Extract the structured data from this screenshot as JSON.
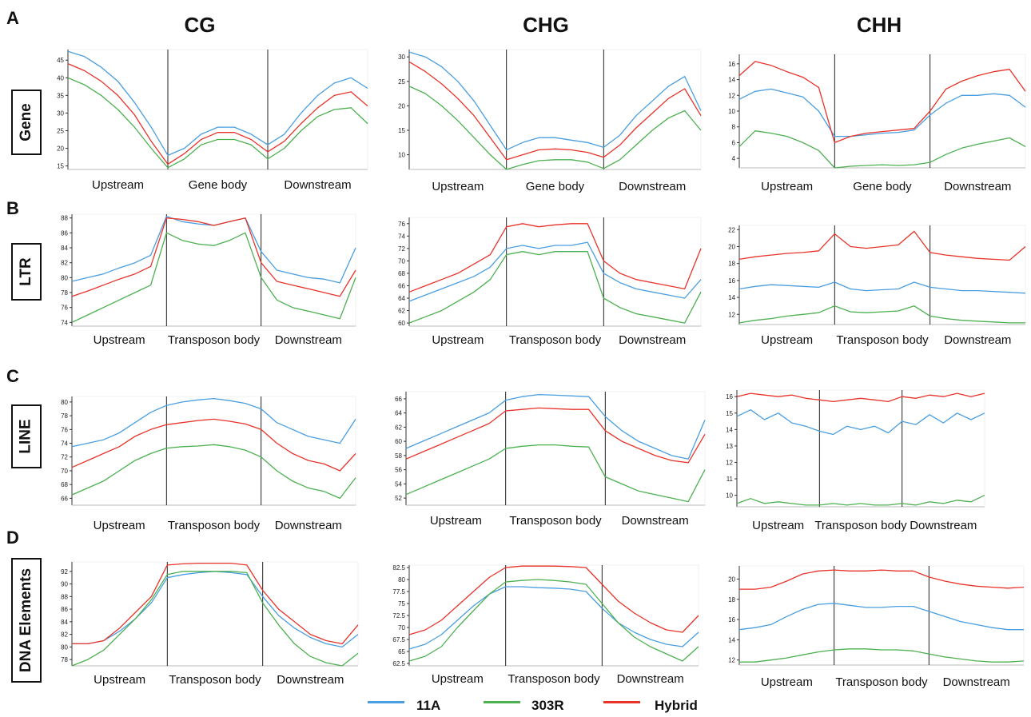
{
  "panel_letters": [
    "A",
    "B",
    "C",
    "D"
  ],
  "columns": [
    "CG",
    "CHG",
    "CHH"
  ],
  "rows": [
    "Gene",
    "LTR",
    "LINE",
    "DNA Elements"
  ],
  "legend": [
    {
      "name": "11A",
      "color": "#4a9ee0"
    },
    {
      "name": "303R",
      "color": "#4cb050"
    },
    {
      "name": "Hybrid",
      "color": "#e8332a"
    }
  ],
  "chart_data": [
    {
      "type": "line",
      "row": "Gene",
      "column": "CG",
      "regions": [
        "Upstream",
        "Gene body",
        "Downstream"
      ],
      "yticks": [
        15,
        20,
        25,
        30,
        35,
        40,
        45
      ],
      "ylim": [
        14,
        48
      ],
      "series": [
        {
          "name": "11A",
          "values": [
            47.5,
            46,
            43,
            39,
            33,
            26,
            18,
            20,
            24,
            26,
            26,
            24,
            21,
            24,
            30,
            35,
            38.5,
            40,
            37
          ]
        },
        {
          "name": "303R",
          "values": [
            40,
            38,
            35,
            31,
            26,
            20,
            14.5,
            17,
            21,
            22.5,
            22.5,
            21,
            17,
            20,
            25,
            29,
            31,
            31.5,
            27
          ]
        },
        {
          "name": "Hybrid",
          "values": [
            44,
            42,
            39,
            35,
            29.5,
            22,
            15.5,
            18.5,
            22.5,
            24.5,
            24.5,
            22.5,
            19,
            22,
            27,
            31.5,
            35,
            36,
            32
          ]
        }
      ]
    },
    {
      "type": "line",
      "row": "Gene",
      "column": "CHG",
      "regions": [
        "Upstream",
        "Gene body",
        "Downstream"
      ],
      "yticks": [
        10,
        15,
        20,
        25,
        30
      ],
      "ylim": [
        7,
        31.5
      ],
      "series": [
        {
          "name": "11A",
          "values": [
            31,
            30,
            28,
            25,
            21,
            16,
            11,
            12.5,
            13.5,
            13.5,
            13,
            12.5,
            11.5,
            14,
            18,
            21,
            24,
            26,
            19
          ]
        },
        {
          "name": "303R",
          "values": [
            24,
            22.5,
            20,
            17,
            13.5,
            10,
            7,
            8,
            8.8,
            9,
            9,
            8.5,
            7.2,
            9,
            12,
            15,
            17.5,
            19,
            15
          ]
        },
        {
          "name": "Hybrid",
          "values": [
            29,
            27,
            24.5,
            21.5,
            18,
            13.5,
            9,
            10,
            11,
            11.2,
            11,
            10.5,
            9.5,
            12,
            15.5,
            18.5,
            21.5,
            23.5,
            18
          ]
        }
      ]
    },
    {
      "type": "line",
      "row": "Gene",
      "column": "CHH",
      "regions": [
        "Upstream",
        "Gene body",
        "Downstream"
      ],
      "yticks": [
        4,
        6,
        8,
        10,
        12,
        14,
        16
      ],
      "ylim": [
        2.8,
        17.2
      ],
      "series": [
        {
          "name": "11A",
          "values": [
            11.5,
            12.5,
            12.8,
            12.3,
            11.8,
            10,
            6.8,
            6.8,
            7,
            7.2,
            7.3,
            7.6,
            9.5,
            11,
            12,
            12,
            12.2,
            12,
            10.5
          ]
        },
        {
          "name": "303R",
          "values": [
            5.5,
            7.5,
            7.2,
            6.8,
            6,
            5,
            2.8,
            3,
            3.1,
            3.2,
            3.1,
            3.2,
            3.5,
            4.5,
            5.3,
            5.8,
            6.2,
            6.6,
            5.5
          ]
        },
        {
          "name": "Hybrid",
          "values": [
            14.5,
            16.3,
            15.8,
            15,
            14.3,
            13,
            6,
            6.8,
            7.2,
            7.4,
            7.6,
            7.8,
            10,
            12.8,
            13.8,
            14.5,
            15,
            15.3,
            12.5
          ]
        }
      ]
    },
    {
      "type": "line",
      "row": "LTR",
      "column": "CG",
      "regions": [
        "Upstream",
        "Transposon body",
        "Downstream"
      ],
      "yticks": [
        74,
        76,
        78,
        80,
        82,
        84,
        86,
        88
      ],
      "ylim": [
        73.5,
        88.5
      ],
      "series": [
        {
          "name": "11A",
          "values": [
            79.5,
            80,
            80.5,
            81.3,
            82,
            83,
            88.2,
            87.5,
            87.2,
            87,
            87.5,
            88,
            83.5,
            81,
            80.5,
            80,
            79.8,
            79.3,
            84
          ]
        },
        {
          "name": "303R",
          "values": [
            74,
            75,
            76,
            77,
            78,
            79,
            86,
            85,
            84.5,
            84.3,
            85,
            86,
            80,
            77,
            76,
            75.5,
            75,
            74.5,
            80
          ]
        },
        {
          "name": "Hybrid",
          "values": [
            77.5,
            78.2,
            79,
            79.8,
            80.5,
            81.5,
            88,
            87.8,
            87.5,
            87,
            87.5,
            88,
            82,
            79.5,
            79,
            78.5,
            78,
            77.5,
            81
          ]
        }
      ]
    },
    {
      "type": "line",
      "row": "LTR",
      "column": "CHG",
      "regions": [
        "Upstream",
        "Transposon body",
        "Downstream"
      ],
      "yticks": [
        60,
        62,
        64,
        66,
        68,
        70,
        72,
        74,
        76
      ],
      "ylim": [
        59.5,
        77
      ],
      "series": [
        {
          "name": "11A",
          "values": [
            63.5,
            64.5,
            65.5,
            66.5,
            67.5,
            69,
            72,
            72.5,
            72,
            72.5,
            72.5,
            73,
            68,
            66.5,
            65.5,
            65,
            64.5,
            64,
            67
          ]
        },
        {
          "name": "303R",
          "values": [
            60,
            61,
            62,
            63.5,
            65,
            67,
            71,
            71.5,
            71,
            71.5,
            71.5,
            71.5,
            64,
            62.5,
            61.5,
            61,
            60.5,
            60,
            65
          ]
        },
        {
          "name": "Hybrid",
          "values": [
            65,
            66,
            67,
            68,
            69.5,
            71,
            75.5,
            76,
            75.5,
            75.8,
            76,
            76,
            70,
            68,
            67,
            66.5,
            66,
            65.5,
            72
          ]
        }
      ]
    },
    {
      "type": "line",
      "row": "LTR",
      "column": "CHH",
      "regions": [
        "Upstream",
        "Transposon body",
        "Downstream"
      ],
      "yticks": [
        12,
        14,
        16,
        18,
        20,
        22
      ],
      "ylim": [
        10.8,
        22.5
      ],
      "series": [
        {
          "name": "11A",
          "values": [
            15,
            15.3,
            15.5,
            15.4,
            15.3,
            15.2,
            15.8,
            15,
            14.8,
            14.9,
            15,
            15.8,
            15.2,
            15,
            14.8,
            14.8,
            14.7,
            14.6,
            14.5
          ]
        },
        {
          "name": "303R",
          "values": [
            11,
            11.3,
            11.5,
            11.8,
            12,
            12.2,
            13,
            12.3,
            12.2,
            12.3,
            12.4,
            13,
            11.8,
            11.5,
            11.3,
            11.2,
            11.1,
            11,
            11
          ]
        },
        {
          "name": "Hybrid",
          "values": [
            18.5,
            18.8,
            19,
            19.2,
            19.3,
            19.5,
            21.5,
            20,
            19.8,
            20,
            20.2,
            21.8,
            19.3,
            19,
            18.8,
            18.6,
            18.5,
            18.4,
            20
          ]
        }
      ]
    },
    {
      "type": "line",
      "row": "LINE",
      "column": "CG",
      "regions": [
        "Upstream",
        "Transposon body",
        "Downstream"
      ],
      "yticks": [
        66,
        68,
        70,
        72,
        74,
        76,
        78,
        80
      ],
      "ylim": [
        65,
        80.8
      ],
      "series": [
        {
          "name": "11A",
          "values": [
            73.5,
            74,
            74.5,
            75.5,
            77,
            78.5,
            79.5,
            80,
            80.3,
            80.5,
            80.2,
            79.8,
            79,
            77,
            76,
            75,
            74.5,
            74,
            77.5
          ]
        },
        {
          "name": "303R",
          "values": [
            66.5,
            67.5,
            68.5,
            70,
            71.5,
            72.5,
            73.3,
            73.5,
            73.6,
            73.8,
            73.5,
            73,
            72,
            70,
            68.5,
            67.5,
            67,
            66,
            69
          ]
        },
        {
          "name": "Hybrid",
          "values": [
            70.5,
            71.5,
            72.5,
            73.5,
            75,
            76,
            76.7,
            77,
            77.3,
            77.5,
            77.2,
            76.8,
            76,
            74,
            72.5,
            71.5,
            71,
            70,
            72.5
          ]
        }
      ]
    },
    {
      "type": "line",
      "row": "LINE",
      "column": "CHG",
      "regions": [
        "Upstream",
        "Transposon body",
        "Downstream"
      ],
      "yticks": [
        52,
        54,
        56,
        58,
        60,
        62,
        64,
        66
      ],
      "ylim": [
        51,
        67
      ],
      "series": [
        {
          "name": "11A",
          "values": [
            59,
            60,
            61,
            62,
            63,
            64,
            65.8,
            66.3,
            66.6,
            66.5,
            66.4,
            66.3,
            63.5,
            61.5,
            60,
            59,
            58,
            57.5,
            63
          ]
        },
        {
          "name": "303R",
          "values": [
            52.5,
            53.5,
            54.5,
            55.5,
            56.5,
            57.5,
            59,
            59.3,
            59.5,
            59.5,
            59.3,
            59.2,
            55,
            54,
            53,
            52.5,
            52,
            51.5,
            56
          ]
        },
        {
          "name": "Hybrid",
          "values": [
            57.5,
            58.5,
            59.5,
            60.5,
            61.5,
            62.5,
            64.3,
            64.5,
            64.7,
            64.6,
            64.5,
            64.5,
            61.5,
            60,
            59,
            58,
            57.3,
            57,
            61
          ]
        }
      ]
    },
    {
      "type": "line",
      "row": "LINE",
      "column": "CHH",
      "regions": [
        "Upstream",
        "Transposon body",
        "Downstream"
      ],
      "yticks": [
        10,
        11,
        12,
        13,
        14,
        15,
        16
      ],
      "ylim": [
        9.3,
        16.4
      ],
      "series": [
        {
          "name": "11A",
          "values": [
            14.8,
            15.2,
            14.6,
            15,
            14.4,
            14.2,
            13.9,
            13.7,
            14.2,
            14,
            14.2,
            13.8,
            14.5,
            14.3,
            14.9,
            14.4,
            15,
            14.6,
            15
          ]
        },
        {
          "name": "303R",
          "values": [
            9.5,
            9.8,
            9.5,
            9.6,
            9.5,
            9.4,
            9.4,
            9.5,
            9.4,
            9.5,
            9.4,
            9.4,
            9.5,
            9.4,
            9.6,
            9.5,
            9.7,
            9.6,
            10
          ]
        },
        {
          "name": "Hybrid",
          "values": [
            16,
            16.2,
            16.1,
            16,
            16.1,
            15.9,
            15.8,
            15.7,
            15.8,
            15.9,
            15.8,
            15.7,
            16,
            15.9,
            16.1,
            16,
            16.2,
            16,
            16.2
          ]
        }
      ]
    },
    {
      "type": "line",
      "row": "DNA Elements",
      "column": "CG",
      "regions": [
        "Upstream",
        "Transposon body",
        "Downstream"
      ],
      "yticks": [
        78,
        80,
        82,
        84,
        86,
        88,
        90,
        92
      ],
      "ylim": [
        77,
        93.5
      ],
      "series": [
        {
          "name": "11A",
          "values": [
            80.5,
            80.5,
            81,
            82.5,
            84.5,
            87,
            91,
            91.5,
            91.8,
            92,
            91.8,
            91.5,
            88,
            85,
            83,
            81.5,
            80.5,
            80,
            82
          ]
        },
        {
          "name": "303R",
          "values": [
            77,
            78,
            79.5,
            82,
            84.5,
            87.5,
            91.5,
            92,
            92,
            92,
            92,
            91.8,
            87,
            83.5,
            80.5,
            78.5,
            77.5,
            77,
            79
          ]
        },
        {
          "name": "Hybrid",
          "values": [
            80.5,
            80.5,
            81,
            83,
            85.5,
            88,
            93,
            93.2,
            93.3,
            93.3,
            93.3,
            93,
            89,
            86,
            84,
            82,
            81,
            80.5,
            83.5
          ]
        }
      ]
    },
    {
      "type": "line",
      "row": "DNA Elements",
      "column": "CHG",
      "regions": [
        "Upstream",
        "Transposon body",
        "Downstream"
      ],
      "yticks": [
        62.5,
        65,
        67.5,
        70,
        72.5,
        75,
        77.5,
        80,
        82.5
      ],
      "ylim": [
        62,
        83
      ],
      "series": [
        {
          "name": "11A",
          "values": [
            65.5,
            66.5,
            68.5,
            71.5,
            74.5,
            77,
            78.5,
            78.5,
            78.3,
            78.2,
            78,
            77.5,
            74,
            71,
            69,
            67.5,
            66.5,
            66,
            69
          ]
        },
        {
          "name": "303R",
          "values": [
            63,
            64,
            66,
            70,
            73.5,
            77,
            79.5,
            79.8,
            80,
            79.8,
            79.5,
            79,
            75,
            71,
            68,
            66,
            64.5,
            63,
            66
          ]
        },
        {
          "name": "Hybrid",
          "values": [
            68.5,
            69.5,
            71.5,
            74.5,
            77.5,
            80.5,
            82.5,
            82.8,
            82.8,
            82.8,
            82.7,
            82.5,
            79,
            75.5,
            73,
            71,
            69.5,
            69,
            72.5
          ]
        }
      ]
    },
    {
      "type": "line",
      "row": "DNA Elements",
      "column": "CHH",
      "regions": [
        "Upstream",
        "Transposon body",
        "Downstream"
      ],
      "yticks": [
        12,
        14,
        16,
        18,
        20
      ],
      "ylim": [
        11.5,
        21.3
      ],
      "series": [
        {
          "name": "11A",
          "values": [
            15,
            15.2,
            15.5,
            16.3,
            17,
            17.5,
            17.6,
            17.4,
            17.2,
            17.2,
            17.3,
            17.3,
            16.8,
            16.3,
            15.8,
            15.5,
            15.2,
            15,
            15
          ]
        },
        {
          "name": "303R",
          "values": [
            11.8,
            11.8,
            12,
            12.2,
            12.5,
            12.8,
            13,
            13.1,
            13.1,
            13,
            13,
            12.9,
            12.6,
            12.3,
            12.1,
            11.9,
            11.8,
            11.8,
            11.9
          ]
        },
        {
          "name": "Hybrid",
          "values": [
            19,
            19,
            19.2,
            19.8,
            20.5,
            20.8,
            20.9,
            20.8,
            20.8,
            20.9,
            20.8,
            20.8,
            20.2,
            19.8,
            19.5,
            19.3,
            19.2,
            19.1,
            19.2
          ]
        }
      ]
    }
  ]
}
